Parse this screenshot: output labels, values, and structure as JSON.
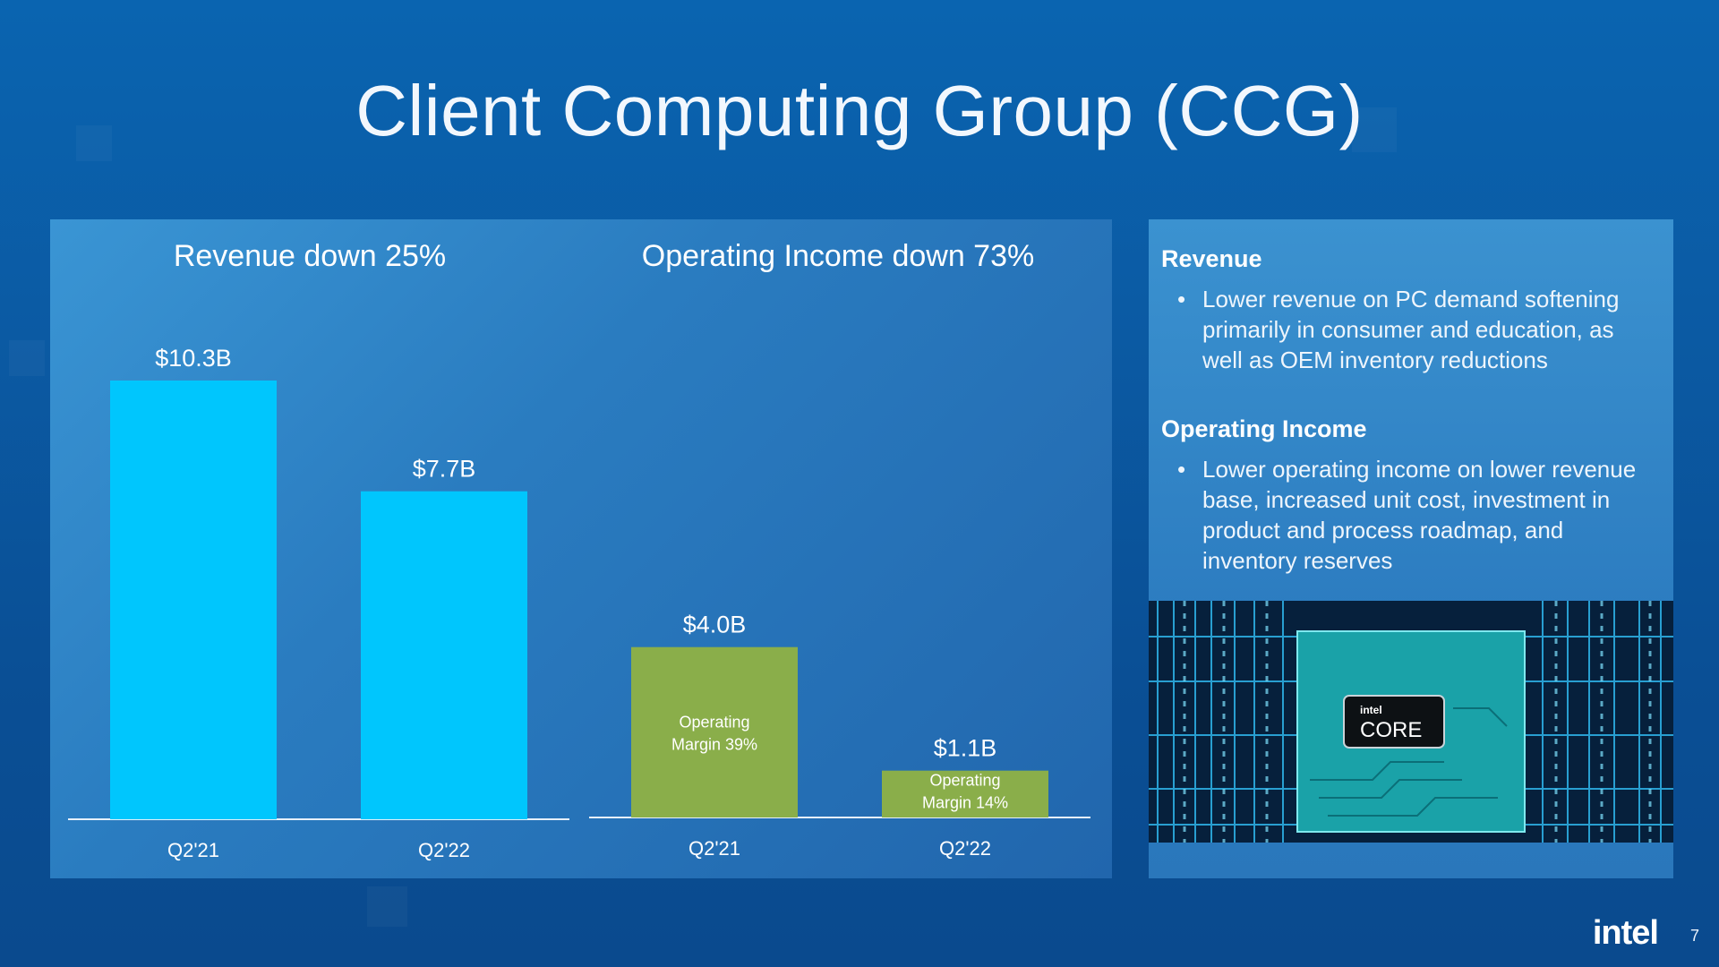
{
  "slide": {
    "title": "Client Computing Group (CCG)",
    "page_number": "7",
    "logo_text": "intel"
  },
  "chart_data": [
    {
      "type": "bar",
      "title": "Revenue down 25%",
      "categories": [
        "Q2'21",
        "Q2'22"
      ],
      "values": [
        10.3,
        7.7
      ],
      "value_labels": [
        "$10.3B",
        "$7.7B"
      ],
      "ylim": [
        0,
        10.3
      ],
      "color": "#00c6fd",
      "grid": false
    },
    {
      "type": "bar",
      "title": "Operating Income down 73%",
      "categories": [
        "Q2'21",
        "Q2'22"
      ],
      "values": [
        4.0,
        1.1
      ],
      "value_labels": [
        "$4.0B",
        "$1.1B"
      ],
      "inner_labels": [
        [
          "Operating",
          "Margin 39%"
        ],
        [
          "Operating",
          "Margin 14%"
        ]
      ],
      "ylim": [
        0,
        10.3
      ],
      "color": "#8aae4a",
      "grid": false
    }
  ],
  "side": {
    "sections": [
      {
        "heading": "Revenue",
        "bullet": "•",
        "lines": [
          "Lower revenue on PC demand softening",
          "primarily in consumer and education, as",
          "well as OEM inventory reductions"
        ]
      },
      {
        "heading": "Operating Income",
        "bullet": "•",
        "lines": [
          "Lower operating income on lower revenue",
          "base, increased unit cost, investment in",
          "product and process roadmap, and",
          "inventory reserves"
        ]
      }
    ],
    "image": {
      "chip_brand": "intel",
      "chip_product": "CORE",
      "colors": {
        "background": "#06203c",
        "circuit": "#2fb6ec",
        "chip": "#1aa2a8"
      }
    }
  },
  "colors": {
    "revenue_bar": "#00c6fd",
    "income_bar": "#8aae4a",
    "axis": "#e6f0fa"
  }
}
